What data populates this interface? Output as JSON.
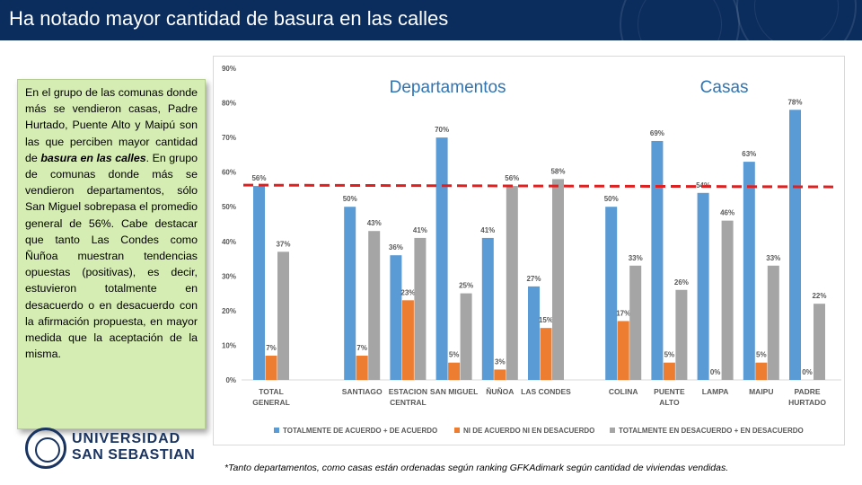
{
  "header": {
    "title": "Ha notado mayor cantidad de basura en las calles"
  },
  "textbox": {
    "before": "En el grupo de las comunas donde más se vendieron casas, Padre Hurtado, Puente Alto y Maipú son las que perciben mayor cantidad de ",
    "emphasis": "basura en las calles",
    "after": ". En grupo de comunas donde más se vendieron departamentos, sólo San Miguel sobrepasa el promedio general de 56%. Cabe destacar que tanto Las Condes como Ñuñoa muestran tendencias opuestas (positivas), es decir, estuvieron totalmente en desacuerdo o en desacuerdo con la afirmación propuesta, en mayor medida que la aceptación de la misma."
  },
  "logo": {
    "line1": "UNIVERSIDAD",
    "line2": "SAN SEBASTIAN"
  },
  "footnote": "*Tanto departamentos, como casas están ordenadas según ranking GFKAdimark según cantidad de viviendas vendidas.",
  "colors": {
    "header": "#0b2d5e",
    "textbox": "#d5ecb3",
    "reference_line": "#e02020"
  },
  "chart_data": {
    "type": "bar",
    "group_labels": [
      "Departamentos",
      "Casas"
    ],
    "categories": [
      [
        "TOTAL",
        "GENERAL"
      ],
      [
        "SANTIAGO"
      ],
      [
        "ESTACION",
        "CENTRAL"
      ],
      [
        "SAN MIGUEL"
      ],
      [
        "ÑUÑOA"
      ],
      [
        "LAS CONDES"
      ],
      [
        "COLINA"
      ],
      [
        "PUENTE",
        "ALTO"
      ],
      [
        "LAMPA"
      ],
      [
        "MAIPU"
      ],
      [
        "PADRE",
        "HURTADO"
      ]
    ],
    "series": [
      {
        "name": "TOTALMENTE DE ACUERDO + DE ACUERDO",
        "color": "#5b9bd5",
        "values": [
          56,
          50,
          36,
          70,
          41,
          27,
          50,
          69,
          54,
          63,
          78
        ]
      },
      {
        "name": "NI DE ACUERDO NI EN DESACUERDO",
        "color": "#ed7d31",
        "values": [
          7,
          7,
          23,
          5,
          3,
          15,
          17,
          5,
          0,
          5,
          0
        ]
      },
      {
        "name": "TOTALMENTE EN DESACUERDO + EN DESACUERDO",
        "color": "#a5a5a5",
        "values": [
          37,
          43,
          41,
          25,
          56,
          58,
          33,
          26,
          46,
          33,
          22
        ]
      }
    ],
    "value_suffix": "%",
    "y_ticks": [
      "0%",
      "10%",
      "20%",
      "30%",
      "40%",
      "50%",
      "60%",
      "70%",
      "80%",
      "90%"
    ],
    "ylim": [
      0,
      90
    ],
    "reference_line": 56,
    "legend_position": "bottom"
  }
}
